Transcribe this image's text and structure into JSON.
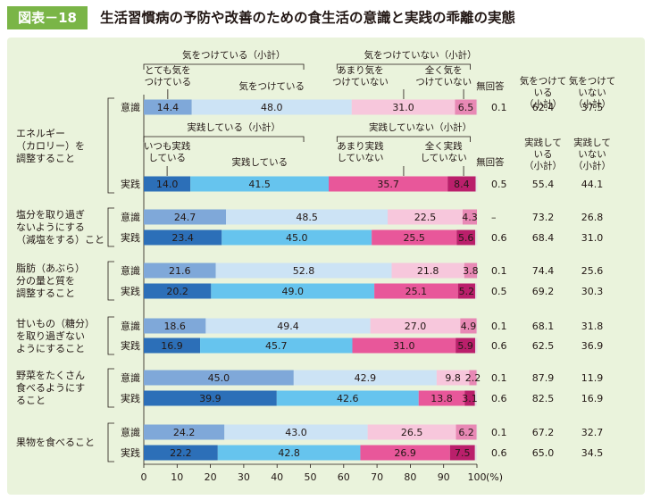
{
  "figure": {
    "label": "図表－18",
    "title": "生活習慣病の予防や改善のための食生活の意識と実践の乖離の実態"
  },
  "colors": {
    "ishiki": [
      "#7fa8d9",
      "#cce3f5",
      "#f7c7dc",
      "#e889b5",
      "#e2e2e2"
    ],
    "jissen": [
      "#2c6fb8",
      "#66c4ee",
      "#e8579a",
      "#ba1f6b",
      "#e2e2e2"
    ],
    "panel": "#eaf3dc",
    "header_label": "#7ab547"
  },
  "chart_data": {
    "type": "bar",
    "orientation": "horizontal",
    "stacked": true,
    "xlim": [
      0,
      100
    ],
    "x_ticks": [
      "0",
      "10",
      "20",
      "30",
      "40",
      "50",
      "60",
      "70",
      "80",
      "90",
      "100"
    ],
    "x_unit": "(%)",
    "grid": false,
    "annotations": {
      "group_top_left": "気をつけている（小計）",
      "group_top_right": "気をつけていない（小計）",
      "segments_top": [
        "とても気を\nつけている",
        "気をつけている",
        "あまり気を\nつけていない",
        "全く気を\nつけていない",
        "無回答"
      ],
      "group_bottom_left": "実践している（小計）",
      "group_bottom_right": "実践していない（小計）",
      "segments_bottom": [
        "いつも実践\nしている",
        "実践している",
        "あまり実践\nしていない",
        "全く実践\nしていない",
        "無回答"
      ]
    },
    "subtotal_headers": {
      "ishiki": [
        "気をつけて\nいる\n（小計）",
        "気をつけて\nいない\n（小計）"
      ],
      "jissen": [
        "実践して\nいる\n（小計）",
        "実践して\nいない\n（小計）"
      ]
    },
    "row_kinds": {
      "ishiki": "意識",
      "jissen": "実践"
    },
    "categories": [
      {
        "name": "エネルギー\n（カロリー）を\n調整すること",
        "ishiki": {
          "values": [
            14.4,
            48.0,
            31.0,
            6.5,
            0.1
          ],
          "labels": [
            "14.4",
            "48.0",
            "31.0",
            "6.5",
            "0.1"
          ],
          "subtotals": [
            "62.4",
            "37.5"
          ]
        },
        "jissen": {
          "values": [
            14.0,
            41.5,
            35.7,
            8.4,
            0.5
          ],
          "labels": [
            "14.0",
            "41.5",
            "35.7",
            "8.4",
            "0.5"
          ],
          "subtotals": [
            "55.4",
            "44.1"
          ]
        }
      },
      {
        "name": "塩分を取り過ぎ\nないようにする\n（減塩をする）こと",
        "ishiki": {
          "values": [
            24.7,
            48.5,
            22.5,
            4.3,
            0
          ],
          "labels": [
            "24.7",
            "48.5",
            "22.5",
            "4.3",
            "–"
          ],
          "subtotals": [
            "73.2",
            "26.8"
          ]
        },
        "jissen": {
          "values": [
            23.4,
            45.0,
            25.5,
            5.6,
            0.6
          ],
          "labels": [
            "23.4",
            "45.0",
            "25.5",
            "5.6",
            "0.6"
          ],
          "subtotals": [
            "68.4",
            "31.0"
          ]
        }
      },
      {
        "name": "脂肪（あぶら）\n分の量と質を\n調整すること",
        "ishiki": {
          "values": [
            21.6,
            52.8,
            21.8,
            3.8,
            0.1
          ],
          "labels": [
            "21.6",
            "52.8",
            "21.8",
            "3.8",
            "0.1"
          ],
          "subtotals": [
            "74.4",
            "25.6"
          ]
        },
        "jissen": {
          "values": [
            20.2,
            49.0,
            25.1,
            5.2,
            0.5
          ],
          "labels": [
            "20.2",
            "49.0",
            "25.1",
            "5.2",
            "0.5"
          ],
          "subtotals": [
            "69.2",
            "30.3"
          ]
        }
      },
      {
        "name": "甘いもの（糖分）\nを取り過ぎない\nようにすること",
        "ishiki": {
          "values": [
            18.6,
            49.4,
            27.0,
            4.9,
            0.1
          ],
          "labels": [
            "18.6",
            "49.4",
            "27.0",
            "4.9",
            "0.1"
          ],
          "subtotals": [
            "68.1",
            "31.8"
          ]
        },
        "jissen": {
          "values": [
            16.9,
            45.7,
            31.0,
            5.9,
            0.6
          ],
          "labels": [
            "16.9",
            "45.7",
            "31.0",
            "5.9",
            "0.6"
          ],
          "subtotals": [
            "62.5",
            "36.9"
          ]
        }
      },
      {
        "name": "野菜をたくさん\n食べるようにす\nること",
        "ishiki": {
          "values": [
            45.0,
            42.9,
            9.8,
            2.2,
            0.1
          ],
          "labels": [
            "45.0",
            "42.9",
            "9.8",
            "2.2",
            "0.1"
          ],
          "subtotals": [
            "87.9",
            "11.9"
          ]
        },
        "jissen": {
          "values": [
            39.9,
            42.6,
            13.8,
            3.1,
            0.6
          ],
          "labels": [
            "39.9",
            "42.6",
            "13.8",
            "3.1",
            "0.6"
          ],
          "subtotals": [
            "82.5",
            "16.9"
          ]
        }
      },
      {
        "name": "果物を食べること",
        "ishiki": {
          "values": [
            24.2,
            43.0,
            26.5,
            6.2,
            0.1
          ],
          "labels": [
            "24.2",
            "43.0",
            "26.5",
            "6.2",
            "0.1"
          ],
          "subtotals": [
            "67.2",
            "32.7"
          ]
        },
        "jissen": {
          "values": [
            22.2,
            42.8,
            26.9,
            7.5,
            0.6
          ],
          "labels": [
            "22.2",
            "42.8",
            "26.9",
            "7.5",
            "0.6"
          ],
          "subtotals": [
            "65.0",
            "34.5"
          ]
        }
      }
    ]
  }
}
